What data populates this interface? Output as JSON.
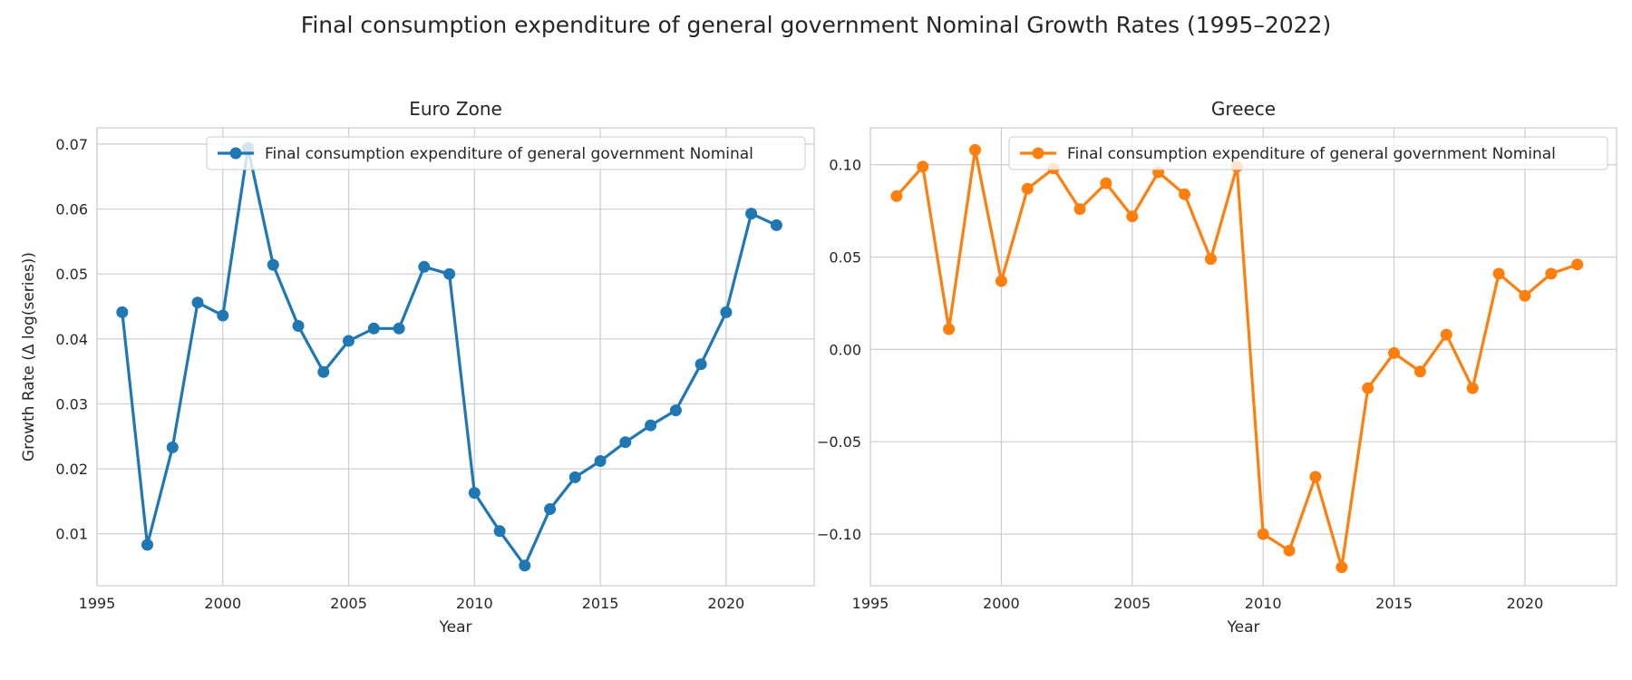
{
  "chart_data": [
    {
      "type": "line",
      "suptitle": "Final consumption expenditure of general government Nominal Growth Rates (1995–2022)",
      "title": "Euro Zone",
      "xlabel": "Year",
      "ylabel": "Growth Rate (Δ log(series))",
      "xlim": [
        1995,
        2023.5
      ],
      "ylim": [
        0.002,
        0.0725
      ],
      "xticks": [
        1995,
        2000,
        2005,
        2010,
        2015,
        2020
      ],
      "yticks": [
        0.01,
        0.02,
        0.03,
        0.04,
        0.05,
        0.06,
        0.07
      ],
      "ytick_labels": [
        "0.01",
        "0.02",
        "0.03",
        "0.04",
        "0.05",
        "0.06",
        "0.07"
      ],
      "grid": true,
      "legend_position": "top-right",
      "series": [
        {
          "name": "Final consumption expenditure of general government Nominal",
          "color": "#1f77b4",
          "x": [
            1996,
            1997,
            1998,
            1999,
            2000,
            2001,
            2002,
            2003,
            2004,
            2005,
            2006,
            2007,
            2008,
            2009,
            2010,
            2011,
            2012,
            2013,
            2014,
            2015,
            2016,
            2017,
            2018,
            2019,
            2020,
            2021,
            2022
          ],
          "y": [
            0.0441,
            0.0083,
            0.0233,
            0.0456,
            0.0436,
            0.0694,
            0.0514,
            0.042,
            0.0349,
            0.0397,
            0.0416,
            0.0416,
            0.0511,
            0.05,
            0.0163,
            0.0104,
            0.0051,
            0.0138,
            0.0187,
            0.0212,
            0.0241,
            0.0267,
            0.029,
            0.0361,
            0.0441,
            0.0593,
            0.0575
          ]
        }
      ]
    },
    {
      "type": "line",
      "title": "Greece",
      "xlabel": "Year",
      "ylabel": "",
      "xlim": [
        1995,
        2023.5
      ],
      "ylim": [
        -0.128,
        0.12
      ],
      "xticks": [
        1995,
        2000,
        2005,
        2010,
        2015,
        2020
      ],
      "yticks": [
        -0.1,
        -0.05,
        0.0,
        0.05,
        0.1
      ],
      "ytick_labels": [
        "−0.10",
        "−0.05",
        "0.00",
        "0.05",
        "0.10"
      ],
      "grid": true,
      "legend_position": "top-right",
      "series": [
        {
          "name": "Final consumption expenditure of general government Nominal",
          "color": "#ff7f0e",
          "x": [
            1996,
            1997,
            1998,
            1999,
            2000,
            2001,
            2002,
            2003,
            2004,
            2005,
            2006,
            2007,
            2008,
            2009,
            2010,
            2011,
            2012,
            2013,
            2014,
            2015,
            2016,
            2017,
            2018,
            2019,
            2020,
            2021,
            2022
          ],
          "y": [
            0.083,
            0.099,
            0.011,
            0.108,
            0.037,
            0.087,
            0.098,
            0.076,
            0.09,
            0.072,
            0.096,
            0.084,
            0.049,
            0.099,
            -0.1,
            -0.109,
            -0.069,
            -0.118,
            -0.021,
            -0.002,
            -0.012,
            0.008,
            -0.021,
            0.041,
            0.029,
            0.041,
            0.046
          ]
        }
      ]
    }
  ]
}
